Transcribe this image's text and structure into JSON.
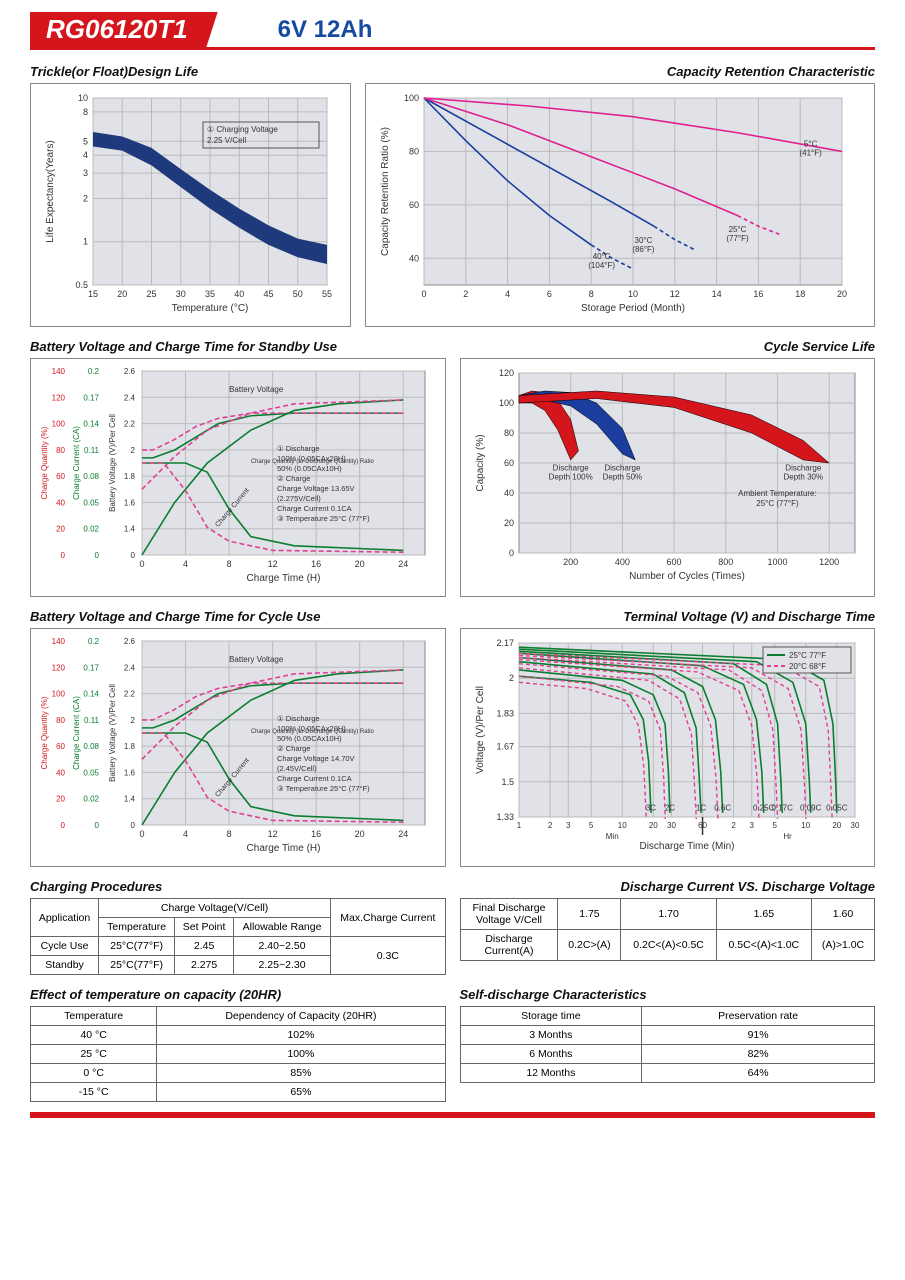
{
  "header": {
    "model": "RG06120T1",
    "spec": "6V  12Ah"
  },
  "charts": {
    "trickle": {
      "title": "Trickle(or Float)Design Life",
      "xlabel": "Temperature (°C)",
      "ylabel": "Life Expectancy(Years)",
      "xlim": [
        15,
        55
      ],
      "xtick_step": 5,
      "yticks": [
        0.5,
        1,
        2,
        3,
        4,
        5,
        8,
        10
      ],
      "yscale": "log",
      "legend": "① Charging Voltage\n    2.25 V/Cell",
      "background": "#e0e2e8",
      "band_color": "#1e3a7c",
      "band_upper": [
        [
          15,
          5.8
        ],
        [
          20,
          5.4
        ],
        [
          25,
          4.5
        ],
        [
          30,
          3.2
        ],
        [
          35,
          2.3
        ],
        [
          40,
          1.7
        ],
        [
          45,
          1.3
        ],
        [
          50,
          1.05
        ],
        [
          55,
          0.95
        ]
      ],
      "band_lower": [
        [
          15,
          4.6
        ],
        [
          20,
          4.3
        ],
        [
          25,
          3.4
        ],
        [
          30,
          2.4
        ],
        [
          35,
          1.7
        ],
        [
          40,
          1.25
        ],
        [
          45,
          0.95
        ],
        [
          50,
          0.78
        ],
        [
          55,
          0.7
        ]
      ]
    },
    "capacity_retention": {
      "title": "Capacity Retention  Characteristic",
      "xlabel": "Storage Period (Month)",
      "ylabel": "Capacity Retention Ratio (%)",
      "xlim": [
        0,
        20
      ],
      "xtick_step": 2,
      "ylim": [
        30,
        100
      ],
      "ytick_step": 20,
      "background": "#e0e2e8",
      "series": [
        {
          "color": "#1a3d9e",
          "dash": "",
          "label": "40°C\n(104°F)",
          "points": [
            [
              0,
              100
            ],
            [
              2,
              84
            ],
            [
              4,
              69
            ],
            [
              6,
              56
            ],
            [
              8,
              45
            ]
          ]
        },
        {
          "color": "#1a3d9e",
          "dash": "4,3",
          "label": "",
          "points": [
            [
              8,
              45
            ],
            [
              9,
              40
            ],
            [
              10,
              36
            ]
          ]
        },
        {
          "color": "#1a3d9e",
          "dash": "",
          "label": "30°C\n(86°F)",
          "points": [
            [
              0,
              100
            ],
            [
              3,
              87
            ],
            [
              6,
              74
            ],
            [
              9,
              61
            ],
            [
              11,
              52
            ]
          ]
        },
        {
          "color": "#1a3d9e",
          "dash": "4,3",
          "label": "",
          "points": [
            [
              11,
              52
            ],
            [
              12,
              47
            ],
            [
              13,
              43
            ]
          ]
        },
        {
          "color": "#e02090",
          "dash": "",
          "label": "25°C\n(77°F)",
          "points": [
            [
              0,
              100
            ],
            [
              4,
              90
            ],
            [
              8,
              78
            ],
            [
              12,
              66
            ],
            [
              15,
              56
            ]
          ]
        },
        {
          "color": "#e02090",
          "dash": "4,3",
          "label": "",
          "points": [
            [
              15,
              56
            ],
            [
              16,
              52
            ],
            [
              17,
              49
            ]
          ]
        },
        {
          "color": "#e02090",
          "dash": "",
          "label": "5°C\n(41°F)",
          "points": [
            [
              0,
              100
            ],
            [
              5,
              97
            ],
            [
              10,
              93
            ],
            [
              15,
              87
            ],
            [
              20,
              80
            ]
          ]
        }
      ],
      "line_labels": [
        {
          "text": "40°C\n(104°F)",
          "x": 8.5,
          "y": 42
        },
        {
          "text": "30°C\n(86°F)",
          "x": 10.5,
          "y": 48
        },
        {
          "text": "25°C\n(77°F)",
          "x": 15,
          "y": 52
        },
        {
          "text": "5°C\n(41°F)",
          "x": 18.5,
          "y": 84
        }
      ]
    },
    "standby_charge": {
      "title": "Battery Voltage and Charge Time for Standby Use",
      "xlabel": "Charge Time (H)",
      "ylabels": [
        "Charge Quantity (%)",
        "Charge Current (CA)",
        "Battery Voltage (V)/Per Cell"
      ],
      "xlim": [
        0,
        26
      ],
      "xticks": [
        0,
        4,
        8,
        12,
        16,
        20,
        24
      ],
      "y1_ticks": [
        0,
        20,
        40,
        60,
        80,
        100,
        120,
        140
      ],
      "y2_ticks": [
        0,
        0.02,
        0.05,
        0.08,
        0.11,
        0.14,
        0.17,
        0.2
      ],
      "y3_ticks": [
        0,
        1.4,
        1.6,
        1.8,
        2.0,
        2.2,
        2.4,
        2.6
      ],
      "background": "#e0e2e8",
      "note": "① Discharge\n    100% (0.05CAx20H)\n    50% (0.05CAx10H)\n② Charge\n    Charge Voltage 13.65V\n    (2.275V/Cell)\n    Charge Current 0.1CA\n③ Temperature 25°C (77°F)",
      "curves": {
        "bv100": {
          "color": "#0a7d2e",
          "dash": "",
          "label": "Battery Voltage",
          "pts": [
            [
              0,
              1.94
            ],
            [
              1,
              1.94
            ],
            [
              3,
              2.0
            ],
            [
              5,
              2.1
            ],
            [
              7,
              2.2
            ],
            [
              10,
              2.26
            ],
            [
              14,
              2.28
            ],
            [
              24,
              2.28
            ]
          ]
        },
        "bv50": {
          "color": "#e04090",
          "dash": "5,3",
          "pts": [
            [
              0,
              2.0
            ],
            [
              1,
              2.0
            ],
            [
              3,
              2.08
            ],
            [
              5,
              2.18
            ],
            [
              7,
              2.24
            ],
            [
              10,
              2.28
            ],
            [
              24,
              2.28
            ]
          ]
        },
        "cq100": {
          "color": "#0a7d2e",
          "dash": "",
          "label": "Charge Quantity",
          "pts": [
            [
              0,
              0
            ],
            [
              3,
              40
            ],
            [
              6,
              70
            ],
            [
              10,
              95
            ],
            [
              14,
              110
            ],
            [
              18,
              115
            ],
            [
              24,
              118
            ]
          ]
        },
        "cq50": {
          "color": "#e04090",
          "dash": "5,3",
          "pts": [
            [
              0,
              50
            ],
            [
              3,
              75
            ],
            [
              6,
              95
            ],
            [
              10,
              108
            ],
            [
              14,
              115
            ],
            [
              24,
              118
            ]
          ]
        },
        "cc100": {
          "color": "#0a7d2e",
          "dash": "",
          "label": "Charge Current",
          "pts": [
            [
              0,
              0.1
            ],
            [
              4,
              0.1
            ],
            [
              6,
              0.09
            ],
            [
              8,
              0.05
            ],
            [
              10,
              0.02
            ],
            [
              14,
              0.01
            ],
            [
              24,
              0.005
            ]
          ]
        },
        "cc50": {
          "color": "#e04090",
          "dash": "5,3",
          "pts": [
            [
              0,
              0.1
            ],
            [
              2,
              0.1
            ],
            [
              4,
              0.07
            ],
            [
              6,
              0.03
            ],
            [
              8,
              0.015
            ],
            [
              12,
              0.005
            ],
            [
              24,
              0.003
            ]
          ]
        }
      }
    },
    "cycle_life": {
      "title": "Cycle Service Life",
      "xlabel": "Number of Cycles (Times)",
      "ylabel": "Capacity (%)",
      "xlim": [
        0,
        1300
      ],
      "xticks": [
        200,
        400,
        600,
        800,
        1000,
        1200
      ],
      "ylim": [
        0,
        120
      ],
      "ytick_step": 20,
      "background": "#e0e2e8",
      "note": "Ambient Temperature:\n25°C (77°F)",
      "wedges": [
        {
          "color": "#d4151b",
          "label": "Discharge\nDepth 100%",
          "upper": [
            [
              0,
              105
            ],
            [
              50,
              108
            ],
            [
              100,
              107
            ],
            [
              150,
              102
            ],
            [
              200,
              89
            ],
            [
              230,
              68
            ]
          ],
          "lower": [
            [
              0,
              100
            ],
            [
              50,
              100
            ],
            [
              100,
              95
            ],
            [
              150,
              82
            ],
            [
              200,
              62
            ]
          ],
          "lx": 200
        },
        {
          "color": "#1a3d9e",
          "label": "Discharge\nDepth 50%",
          "upper": [
            [
              0,
              105
            ],
            [
              100,
              108
            ],
            [
              200,
              107
            ],
            [
              300,
              100
            ],
            [
              400,
              83
            ],
            [
              450,
              62
            ]
          ],
          "lower": [
            [
              0,
              100
            ],
            [
              100,
              102
            ],
            [
              200,
              98
            ],
            [
              300,
              86
            ],
            [
              400,
              66
            ]
          ],
          "lx": 400
        },
        {
          "color": "#d4151b",
          "label": "Discharge\nDepth 30%",
          "upper": [
            [
              0,
              105
            ],
            [
              300,
              108
            ],
            [
              600,
              104
            ],
            [
              900,
              92
            ],
            [
              1100,
              75
            ],
            [
              1200,
              60
            ]
          ],
          "lower": [
            [
              0,
              100
            ],
            [
              300,
              103
            ],
            [
              600,
              97
            ],
            [
              900,
              80
            ],
            [
              1100,
              62
            ]
          ],
          "lx": 1100
        }
      ]
    },
    "cycle_charge": {
      "title": "Battery Voltage and Charge Time for Cycle Use",
      "xlabel": "Charge Time (H)",
      "note": "① Discharge\n    100% (0.05CAx20H)\n    50% (0.05CAx10H)\n② Charge\n    Charge Voltage 14.70V\n    (2.45V/Cell)\n    Charge Current 0.1CA\n③ Temperature 25°C (77°F)"
    },
    "discharge_curve": {
      "title": "Terminal Voltage (V) and Discharge Time",
      "xlabel": "Discharge Time (Min)",
      "ylabel": "Voltage (V)/Per Cell",
      "yticks": [
        1.33,
        1.5,
        1.67,
        1.83,
        2.0,
        2.17
      ],
      "xticks_min": [
        1,
        2,
        3,
        5,
        10,
        20,
        30,
        60
      ],
      "xticks_hr": [
        2,
        3,
        5,
        10,
        20,
        30
      ],
      "legend": [
        {
          "color": "#0a7d2e",
          "dash": "",
          "text": "25°C 77°F"
        },
        {
          "color": "#e04090",
          "dash": "4,3",
          "text": "20°C 68°F"
        }
      ],
      "rates": [
        "3C",
        "2C",
        "1C",
        "0.6C",
        "0.25C",
        "0.17C",
        "0.09C",
        "0.05C"
      ],
      "curves25": [
        [
          [
            0,
            2.01
          ],
          [
            5,
            1.98
          ],
          [
            12,
            1.92
          ],
          [
            16,
            1.8
          ],
          [
            18,
            1.6
          ],
          [
            19,
            1.35
          ]
        ],
        [
          [
            0,
            2.04
          ],
          [
            10,
            1.99
          ],
          [
            20,
            1.92
          ],
          [
            26,
            1.78
          ],
          [
            28,
            1.55
          ],
          [
            29,
            1.35
          ]
        ],
        [
          [
            0,
            2.08
          ],
          [
            20,
            2.02
          ],
          [
            40,
            1.93
          ],
          [
            52,
            1.76
          ],
          [
            56,
            1.5
          ],
          [
            58,
            1.35
          ]
        ],
        [
          [
            0,
            2.1
          ],
          [
            30,
            2.04
          ],
          [
            60,
            1.96
          ],
          [
            80,
            1.8
          ],
          [
            90,
            1.55
          ],
          [
            94,
            1.35
          ]
        ],
        [
          [
            0,
            2.12
          ],
          [
            60,
            2.06
          ],
          [
            150,
            1.97
          ],
          [
            200,
            1.8
          ],
          [
            225,
            1.55
          ],
          [
            235,
            1.35
          ]
        ],
        [
          [
            0,
            2.13
          ],
          [
            120,
            2.07
          ],
          [
            250,
            1.97
          ],
          [
            320,
            1.78
          ],
          [
            345,
            1.5
          ],
          [
            355,
            1.35
          ]
        ],
        [
          [
            0,
            2.14
          ],
          [
            200,
            2.08
          ],
          [
            450,
            1.98
          ],
          [
            600,
            1.78
          ],
          [
            650,
            1.5
          ],
          [
            670,
            1.35
          ]
        ],
        [
          [
            0,
            2.15
          ],
          [
            400,
            2.09
          ],
          [
            900,
            1.99
          ],
          [
            1100,
            1.78
          ],
          [
            1170,
            1.5
          ],
          [
            1200,
            1.35
          ]
        ]
      ]
    }
  },
  "tables": {
    "charging_procedures": {
      "title": "Charging Procedures",
      "headers": {
        "app": "Application",
        "cv": "Charge Voltage(V/Cell)",
        "temp": "Temperature",
        "sp": "Set Point",
        "ar": "Allowable Range",
        "max": "Max.Charge Current"
      },
      "rows": [
        {
          "app": "Cycle Use",
          "temp": "25°C(77°F)",
          "sp": "2.45",
          "ar": "2.40~2.50"
        },
        {
          "app": "Standby",
          "temp": "25°C(77°F)",
          "sp": "2.275",
          "ar": "2.25~2.30"
        }
      ],
      "max": "0.3C"
    },
    "discharge_voltage": {
      "title": "Discharge Current VS. Discharge Voltage",
      "h1": "Final Discharge\nVoltage V/Cell",
      "h2": "Discharge\nCurrent(A)",
      "cols": [
        "1.75",
        "1.70",
        "1.65",
        "1.60"
      ],
      "vals": [
        "0.2C>(A)",
        "0.2C<(A)<0.5C",
        "0.5C<(A)<1.0C",
        "(A)>1.0C"
      ]
    },
    "temp_capacity": {
      "title": "Effect of temperature on capacity (20HR)",
      "headers": [
        "Temperature",
        "Dependency of Capacity (20HR)"
      ],
      "rows": [
        [
          "40 °C",
          "102%"
        ],
        [
          "25 °C",
          "100%"
        ],
        [
          "0 °C",
          "85%"
        ],
        [
          "-15 °C",
          "65%"
        ]
      ]
    },
    "self_discharge": {
      "title": "Self-discharge Characteristics",
      "headers": [
        "Storage time",
        "Preservation rate"
      ],
      "rows": [
        [
          "3 Months",
          "91%"
        ],
        [
          "6 Months",
          "82%"
        ],
        [
          "12 Months",
          "64%"
        ]
      ]
    }
  }
}
